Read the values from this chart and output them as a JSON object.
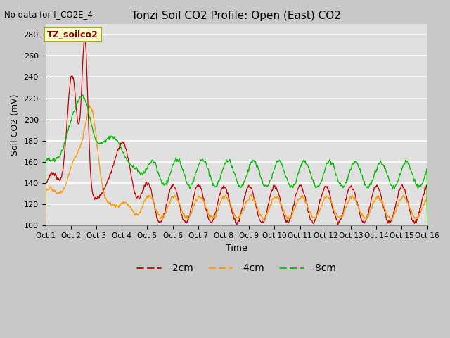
{
  "title": "Tonzi Soil CO2 Profile: Open (East) CO2",
  "no_data_text": "No data for f_CO2E_4",
  "legend_box_text": "TZ_soilco2",
  "xlabel": "Time",
  "ylabel": "Soil CO2 (mV)",
  "ylim": [
    100,
    290
  ],
  "yticks": [
    100,
    120,
    140,
    160,
    180,
    200,
    220,
    240,
    260,
    280
  ],
  "xlim": [
    0,
    15
  ],
  "xtick_labels": [
    "Oct 1",
    "Oct 2",
    "Oct 3",
    "Oct 4",
    "Oct 5",
    "Oct 6",
    "Oct 7",
    "Oct 8",
    "Oct 9",
    "Oct 10",
    "Oct 11",
    "Oct 12",
    "Oct 13",
    "Oct 14",
    "Oct 15",
    "Oct 16"
  ],
  "colors": {
    "neg2cm": "#cc0000",
    "neg4cm": "#ff9900",
    "neg8cm": "#00bb00"
  },
  "fig_facecolor": "#c8c8c8",
  "ax_facecolor": "#e0e0e0",
  "legend_entries": [
    "-2cm",
    "-4cm",
    "-8cm"
  ],
  "grid_color": "#ffffff"
}
